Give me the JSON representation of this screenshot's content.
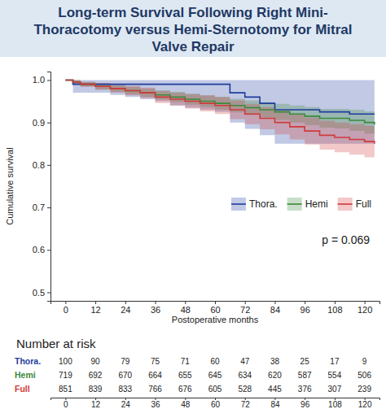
{
  "chart_data": {
    "type": "line",
    "line_style": "step",
    "title": "Long-term Survival Following Right Mini-Thoracotomy versus Hemi-Sternotomy for Mitral Valve Repair",
    "x_label": "Postoperative months",
    "y_label": "Cumulative survival",
    "xlim": [
      -6,
      126
    ],
    "xticks": [
      0,
      12,
      24,
      36,
      48,
      60,
      72,
      84,
      96,
      108,
      120
    ],
    "ylim": [
      0.48,
      1.02
    ],
    "yticks": [
      0.5,
      0.6,
      0.7,
      0.8,
      0.9,
      {
        "value": 1,
        "label": "1.0"
      }
    ],
    "grid": false,
    "legend": "right",
    "annotations": [
      "p = 0.069"
    ],
    "x": [
      0,
      3,
      6,
      12,
      18,
      24,
      30,
      36,
      42,
      48,
      54,
      60,
      66,
      72,
      78,
      84,
      90,
      96,
      102,
      108,
      114,
      120,
      124
    ],
    "series": [
      {
        "name": "Thora.",
        "color": "#1f3d9e",
        "values": [
          1.0,
          0.99,
          0.99,
          0.99,
          0.99,
          0.99,
          0.99,
          0.99,
          0.99,
          0.99,
          0.99,
          0.99,
          0.97,
          0.96,
          0.945,
          0.93,
          0.93,
          0.93,
          0.925,
          0.925,
          0.92,
          0.92,
          0.92
        ],
        "lower": [
          1.0,
          0.97,
          0.97,
          0.97,
          0.965,
          0.96,
          0.955,
          0.95,
          0.94,
          0.935,
          0.93,
          0.925,
          0.9,
          0.885,
          0.87,
          0.85,
          0.85,
          0.85,
          0.85,
          0.85,
          0.85,
          0.85,
          0.85
        ],
        "upper": [
          1.0,
          1.0,
          1.0,
          1.0,
          1.0,
          1.0,
          1.0,
          1.0,
          1.0,
          1.0,
          1.0,
          1.0,
          1.0,
          1.0,
          1.0,
          1.0,
          1.0,
          1.0,
          1.0,
          1.0,
          1.0,
          1.0,
          1.0
        ],
        "at_risk": [
          100,
          90,
          79,
          75,
          71,
          60,
          47,
          38,
          25,
          17,
          9
        ]
      },
      {
        "name": "Hemi",
        "color": "#3a8a3a",
        "values": [
          1.0,
          0.995,
          0.99,
          0.985,
          0.98,
          0.975,
          0.97,
          0.965,
          0.96,
          0.955,
          0.95,
          0.945,
          0.94,
          0.935,
          0.93,
          0.925,
          0.92,
          0.915,
          0.91,
          0.91,
          0.905,
          0.9,
          0.895
        ],
        "lower": [
          1.0,
          0.99,
          0.985,
          0.978,
          0.972,
          0.966,
          0.96,
          0.954,
          0.948,
          0.942,
          0.936,
          0.93,
          0.924,
          0.918,
          0.912,
          0.906,
          0.9,
          0.894,
          0.888,
          0.886,
          0.88,
          0.874,
          0.868
        ],
        "upper": [
          1.0,
          1.0,
          0.995,
          0.992,
          0.988,
          0.984,
          0.98,
          0.976,
          0.972,
          0.968,
          0.964,
          0.96,
          0.956,
          0.952,
          0.948,
          0.944,
          0.94,
          0.936,
          0.932,
          0.932,
          0.93,
          0.926,
          0.922
        ],
        "at_risk": [
          719,
          692,
          670,
          664,
          655,
          645,
          634,
          620,
          587,
          554,
          506
        ]
      },
      {
        "name": "Full",
        "color": "#d03a3a",
        "values": [
          1.0,
          0.995,
          0.99,
          0.985,
          0.98,
          0.975,
          0.97,
          0.96,
          0.955,
          0.95,
          0.945,
          0.94,
          0.93,
          0.92,
          0.91,
          0.9,
          0.89,
          0.88,
          0.87,
          0.865,
          0.86,
          0.855,
          0.85
        ],
        "lower": [
          1.0,
          0.99,
          0.984,
          0.977,
          0.97,
          0.964,
          0.958,
          0.946,
          0.94,
          0.933,
          0.926,
          0.92,
          0.908,
          0.896,
          0.884,
          0.872,
          0.86,
          0.848,
          0.836,
          0.83,
          0.824,
          0.818,
          0.81
        ],
        "upper": [
          1.0,
          1.0,
          0.996,
          0.993,
          0.99,
          0.986,
          0.982,
          0.974,
          0.97,
          0.967,
          0.964,
          0.96,
          0.952,
          0.944,
          0.936,
          0.928,
          0.92,
          0.912,
          0.904,
          0.9,
          0.896,
          0.892,
          0.89
        ],
        "at_risk": [
          851,
          839,
          833,
          766,
          676,
          605,
          528,
          445,
          376,
          307,
          239
        ]
      }
    ],
    "risk_table": {
      "title": "Number at risk",
      "times": [
        0,
        12,
        24,
        36,
        48,
        60,
        72,
        84,
        96,
        108,
        120
      ]
    }
  }
}
